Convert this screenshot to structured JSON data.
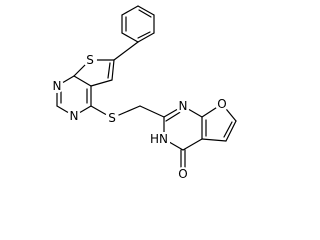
{
  "atoms": {
    "thiophene_s": "S",
    "pyrimidine_n1": "N",
    "pyrimidine_n3": "N",
    "linker_s": "S",
    "pyrimidinone_n1": "N",
    "pyrimidinone_nh": "HN",
    "furan_o": "O",
    "carbonyl_o": "O"
  }
}
